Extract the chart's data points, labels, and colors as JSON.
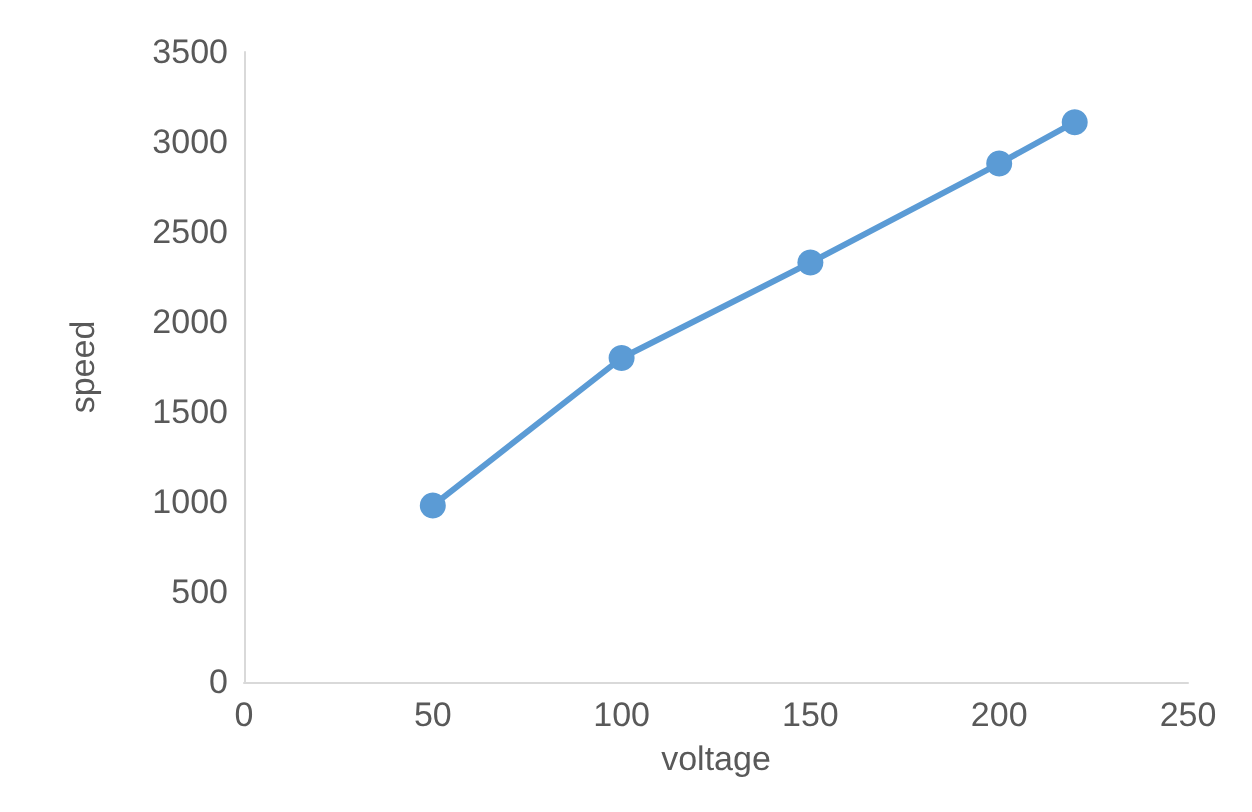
{
  "chart_data": {
    "type": "line",
    "xlabel": "voltage",
    "ylabel": "speed",
    "x": [
      50,
      100,
      150,
      200,
      220
    ],
    "series": [
      {
        "color": "#5b9bd5",
        "values": [
          980,
          1800,
          2330,
          2880,
          3110
        ]
      }
    ],
    "xlim": [
      0,
      250
    ],
    "xticks": [
      0,
      50,
      100,
      150,
      200,
      250
    ],
    "ylim": [
      0,
      3500
    ],
    "yticks": [
      0,
      500,
      1000,
      1500,
      2000,
      2500,
      3000,
      3500
    ],
    "marker": "circle",
    "line_style": "solid"
  }
}
